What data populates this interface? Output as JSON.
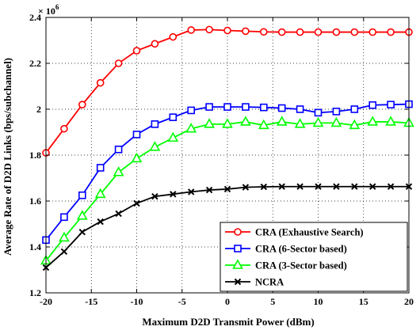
{
  "chart_data": {
    "type": "line",
    "xlabel": "Maximum D2D Transmit Power (dBm)",
    "ylabel": "Average Rate of D2D Links (bps/subchannel)",
    "multiplier_base": "× 10",
    "multiplier_exp": "6",
    "xlim": [
      -20,
      20
    ],
    "ylim": [
      1.2,
      2.4
    ],
    "x_ticks": [
      -20,
      -15,
      -10,
      -5,
      0,
      5,
      10,
      15,
      20
    ],
    "y_ticks": [
      1.2,
      1.4,
      1.6,
      1.8,
      2.0,
      2.2,
      2.4
    ],
    "x_tick_labels": [
      "-20",
      "-15",
      "-10",
      "-5",
      "0",
      "5",
      "10",
      "15",
      "20"
    ],
    "y_tick_labels": [
      "1.2",
      "1.4",
      "1.6",
      "1.8",
      "2",
      "2.2",
      "2.4"
    ],
    "grid": true,
    "legend_position": "bottom-right",
    "x": [
      -20,
      -18,
      -16,
      -14,
      -12,
      -10,
      -8,
      -6,
      -4,
      -2,
      0,
      2,
      4,
      6,
      8,
      10,
      12,
      14,
      16,
      18,
      20
    ],
    "series": [
      {
        "name": "CRA (Exhaustive Search)",
        "color": "#ff0000",
        "marker": "circle",
        "values": [
          1.81,
          1.915,
          2.02,
          2.115,
          2.2,
          2.255,
          2.285,
          2.315,
          2.345,
          2.347,
          2.343,
          2.34,
          2.337,
          2.336,
          2.336,
          2.336,
          2.336,
          2.336,
          2.336,
          2.336,
          2.336
        ]
      },
      {
        "name": "CRA (6-Sector based)",
        "color": "#0000ff",
        "marker": "square",
        "values": [
          1.43,
          1.53,
          1.625,
          1.745,
          1.825,
          1.89,
          1.935,
          1.965,
          1.995,
          2.01,
          2.01,
          2.01,
          2.008,
          2.005,
          2.0,
          1.985,
          1.99,
          2.0,
          2.018,
          2.02,
          2.022
        ]
      },
      {
        "name": "CRA (3-Sector based)",
        "color": "#00ff00",
        "marker": "triangle",
        "values": [
          1.34,
          1.44,
          1.535,
          1.63,
          1.725,
          1.785,
          1.835,
          1.875,
          1.915,
          1.935,
          1.935,
          1.945,
          1.93,
          1.945,
          1.935,
          1.94,
          1.94,
          1.93,
          1.945,
          1.945,
          1.94
        ]
      },
      {
        "name": "NCRA",
        "color": "#000000",
        "marker": "x",
        "values": [
          1.31,
          1.38,
          1.465,
          1.51,
          1.545,
          1.59,
          1.62,
          1.63,
          1.64,
          1.648,
          1.652,
          1.66,
          1.662,
          1.663,
          1.663,
          1.663,
          1.663,
          1.663,
          1.663,
          1.663,
          1.663
        ]
      }
    ]
  }
}
